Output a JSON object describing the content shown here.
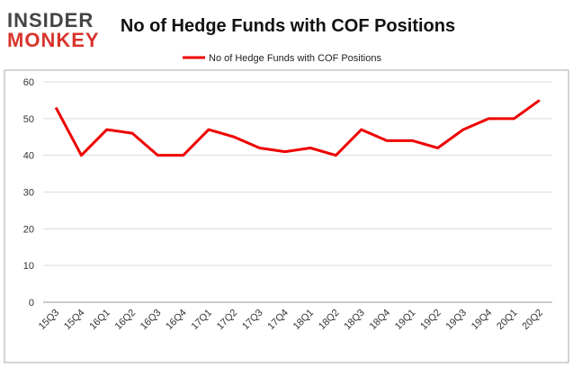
{
  "logo": {
    "line1": "INSIDER",
    "line2": "MONKEY"
  },
  "chart_data": {
    "type": "line",
    "title": "No of Hedge Funds with COF Positions",
    "categories": [
      "15Q3",
      "15Q4",
      "16Q1",
      "16Q2",
      "16Q3",
      "16Q4",
      "17Q1",
      "17Q2",
      "17Q3",
      "17Q4",
      "18Q1",
      "18Q2",
      "18Q3",
      "18Q4",
      "19Q1",
      "19Q2",
      "19Q3",
      "19Q4",
      "20Q1",
      "20Q2"
    ],
    "series": [
      {
        "name": "No of Hedge Funds with COF Positions",
        "color": "#ee0000",
        "values": [
          53,
          40,
          47,
          46,
          40,
          40,
          47,
          45,
          42,
          41,
          42,
          40,
          47,
          44,
          44,
          42,
          47,
          50,
          50,
          55
        ]
      }
    ],
    "ylim": [
      0,
      60
    ],
    "yticks": [
      0,
      10,
      20,
      30,
      40,
      50,
      60
    ],
    "grid": true,
    "legend": "top"
  }
}
